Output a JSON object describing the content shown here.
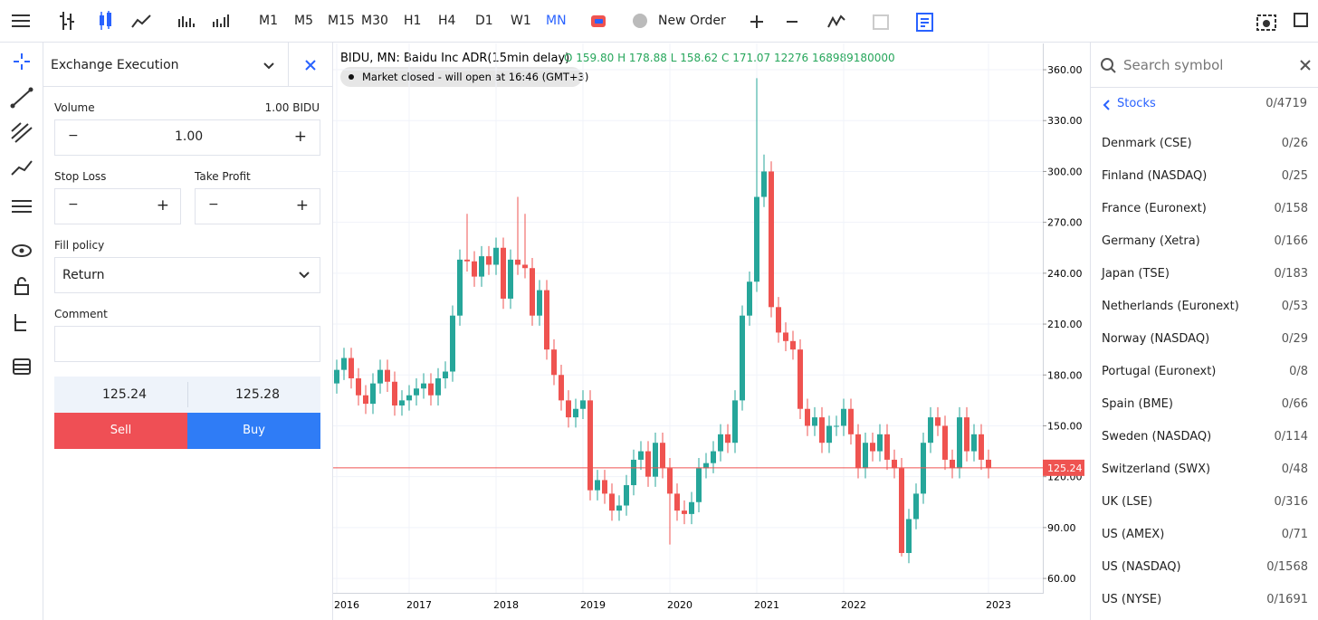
{
  "toolbar": {
    "timeframes": [
      "M1",
      "M5",
      "M15",
      "M30",
      "H1",
      "H4",
      "D1",
      "W1",
      "MN"
    ],
    "new_order": "New Order"
  },
  "order_panel": {
    "title": "Exchange Execution",
    "volume_label": "Volume",
    "volume_unit": "1.00 BIDU",
    "volume": "1.00",
    "stop_loss": "Stop Loss",
    "take_profit": "Take Profit",
    "fill_policy": "Fill policy",
    "fill_value": "Return",
    "comment": "Comment",
    "bid": "125.24",
    "ask": "125.28",
    "sell": "Sell",
    "buy": "Buy"
  },
  "chart_data": {
    "type": "candlestick",
    "title": "BIDU, MN: Baidu Inc ADR(15min delay)",
    "ohlc_info": "O 159.80 H 178.88 L 158.62 C 171.07 12276 168989180000",
    "status": "Market closed - will open at 16:46 (GMT+3)",
    "up_color": "#26a69a",
    "down_color": "#ef5350",
    "categories": [
      "2016",
      null,
      null,
      null,
      null,
      null,
      null,
      null,
      null,
      null,
      "2017",
      null,
      null,
      null,
      null,
      null,
      null,
      null,
      null,
      null,
      null,
      null,
      "2018",
      null,
      null,
      null,
      null,
      null,
      null,
      null,
      null,
      null,
      null,
      null,
      "2019",
      null,
      null,
      null,
      null,
      null,
      null,
      null,
      null,
      null,
      null,
      null,
      "2020",
      null,
      null,
      null,
      null,
      null,
      null,
      null,
      null,
      null,
      null,
      null,
      "2021",
      null,
      null,
      null,
      null,
      null,
      null,
      null,
      null,
      null,
      null,
      null,
      "2022",
      null,
      null,
      null,
      null,
      null,
      null,
      null,
      null,
      null,
      null,
      null,
      null,
      null,
      null,
      null,
      null,
      null,
      null,
      null,
      "2023"
    ],
    "open": [
      175,
      183,
      190,
      178,
      168,
      163,
      175,
      183,
      176,
      162,
      165,
      168,
      172,
      175,
      168,
      178,
      182,
      215,
      248,
      247,
      238,
      250,
      245,
      255,
      225,
      248,
      245,
      243,
      215,
      230,
      195,
      180,
      165,
      155,
      160,
      165,
      112,
      118,
      110,
      100,
      103,
      115,
      130,
      135,
      120,
      140,
      125,
      110,
      100,
      98,
      105,
      125,
      128,
      135,
      145,
      140,
      165,
      215,
      235,
      285,
      300,
      220,
      205,
      200,
      195,
      160,
      150,
      155,
      140,
      150,
      150,
      160,
      145,
      125,
      140,
      135,
      145,
      130,
      125,
      75,
      95,
      110,
      140,
      155,
      150,
      130,
      125,
      155,
      135,
      145,
      130
    ],
    "high": [
      189,
      196,
      196,
      184,
      174,
      181,
      189,
      189,
      182,
      171,
      174,
      178,
      181,
      181,
      184,
      188,
      221,
      254,
      275,
      253,
      256,
      256,
      261,
      261,
      254,
      285,
      275,
      249,
      236,
      236,
      201,
      186,
      171,
      166,
      171,
      171,
      124,
      124,
      116,
      109,
      121,
      136,
      141,
      141,
      146,
      146,
      131,
      116,
      106,
      111,
      131,
      134,
      141,
      151,
      151,
      171,
      221,
      241,
      355,
      310,
      306,
      226,
      211,
      206,
      201,
      166,
      161,
      161,
      156,
      156,
      166,
      166,
      151,
      146,
      146,
      151,
      151,
      136,
      131,
      101,
      116,
      146,
      161,
      161,
      156,
      136,
      161,
      161,
      151,
      151,
      136
    ],
    "low": [
      169,
      177,
      172,
      162,
      157,
      157,
      169,
      170,
      156,
      156,
      159,
      162,
      166,
      162,
      162,
      172,
      176,
      209,
      241,
      232,
      232,
      239,
      239,
      219,
      219,
      239,
      237,
      209,
      209,
      189,
      174,
      159,
      149,
      149,
      154,
      106,
      106,
      104,
      94,
      94,
      97,
      109,
      124,
      114,
      114,
      119,
      80,
      94,
      92,
      92,
      99,
      119,
      122,
      129,
      134,
      134,
      159,
      209,
      229,
      279,
      214,
      199,
      194,
      189,
      154,
      144,
      144,
      134,
      134,
      144,
      144,
      139,
      119,
      119,
      129,
      129,
      124,
      119,
      73,
      69,
      89,
      104,
      134,
      144,
      124,
      119,
      119,
      129,
      129,
      124,
      119
    ],
    "close": [
      183,
      190,
      178,
      168,
      163,
      175,
      183,
      176,
      162,
      165,
      168,
      172,
      175,
      168,
      178,
      182,
      215,
      248,
      247,
      238,
      250,
      245,
      255,
      225,
      248,
      245,
      243,
      215,
      230,
      195,
      180,
      165,
      155,
      160,
      165,
      112,
      118,
      110,
      100,
      103,
      115,
      130,
      135,
      120,
      140,
      125,
      110,
      100,
      98,
      105,
      125,
      128,
      135,
      145,
      140,
      165,
      215,
      235,
      285,
      300,
      220,
      205,
      200,
      195,
      160,
      150,
      155,
      140,
      150,
      150,
      160,
      145,
      125,
      140,
      135,
      145,
      130,
      125,
      75,
      95,
      110,
      140,
      155,
      150,
      130,
      125,
      155,
      135,
      145,
      130,
      125
    ],
    "ylim": [
      51.5,
      375.5
    ],
    "yticks": [
      {
        "value": 60,
        "label": "60.00"
      },
      {
        "value": 90,
        "label": "90.00"
      },
      {
        "value": 120,
        "label": "120.00"
      },
      {
        "value": 150,
        "label": "150.00"
      },
      {
        "value": 180,
        "label": "180.00"
      },
      {
        "value": 210,
        "label": "210.00"
      },
      {
        "value": 240,
        "label": "240.00"
      },
      {
        "value": 270,
        "label": "270.00"
      },
      {
        "value": 300,
        "label": "300.00"
      },
      {
        "value": 330,
        "label": "330.00"
      },
      {
        "value": 360,
        "label": "360.00"
      }
    ],
    "price_line": {
      "value": 125.24,
      "label": "125.24"
    },
    "grid": true
  },
  "symbols": {
    "search": "Search symbol",
    "group": "Stocks",
    "group_count": "0/4719",
    "items": [
      [
        "Denmark (CSE)",
        "0/26"
      ],
      [
        "Finland (NASDAQ)",
        "0/25"
      ],
      [
        "France (Euronext)",
        "0/158"
      ],
      [
        "Germany (Xetra)",
        "0/166"
      ],
      [
        "Japan (TSE)",
        "0/183"
      ],
      [
        "Netherlands (Euronext)",
        "0/53"
      ],
      [
        "Norway (NASDAQ)",
        "0/29"
      ],
      [
        "Portugal (Euronext)",
        "0/8"
      ],
      [
        "Spain (BME)",
        "0/66"
      ],
      [
        "Sweden (NASDAQ)",
        "0/114"
      ],
      [
        "Switzerland (SWX)",
        "0/48"
      ],
      [
        "UK (LSE)",
        "0/316"
      ],
      [
        "US (AMEX)",
        "0/71"
      ],
      [
        "US (NASDAQ)",
        "0/1568"
      ],
      [
        "US (NYSE)",
        "0/1691"
      ]
    ]
  }
}
